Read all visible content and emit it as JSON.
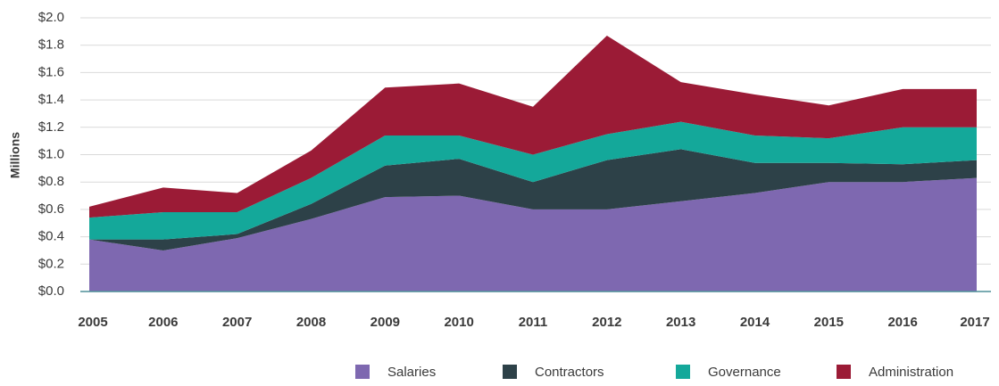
{
  "chart_data": {
    "type": "stacked_area",
    "y_label": "Millions",
    "categories": [
      "2005",
      "2006",
      "2007",
      "2008",
      "2009",
      "2010",
      "2011",
      "2012",
      "2013",
      "2014",
      "2015",
      "2016",
      "2017"
    ],
    "series": [
      {
        "name": "Salaries",
        "color": "#7e68b0",
        "values": [
          0.38,
          0.3,
          0.39,
          0.53,
          0.69,
          0.7,
          0.6,
          0.6,
          0.66,
          0.72,
          0.8,
          0.8,
          0.83
        ]
      },
      {
        "name": "Contractors",
        "color": "#2d4148",
        "values": [
          0,
          0.08,
          0.03,
          0.11,
          0.23,
          0.27,
          0.2,
          0.36,
          0.38,
          0.22,
          0.14,
          0.13,
          0.13
        ]
      },
      {
        "name": "Governance",
        "color": "#14a89a",
        "values": [
          0.16,
          0.2,
          0.16,
          0.19,
          0.22,
          0.17,
          0.2,
          0.19,
          0.2,
          0.2,
          0.18,
          0.27,
          0.24
        ]
      },
      {
        "name": "Administration",
        "color": "#9b1b36",
        "values": [
          0.08,
          0.18,
          0.14,
          0.2,
          0.35,
          0.38,
          0.35,
          0.72,
          0.29,
          0.3,
          0.24,
          0.28,
          0.28
        ]
      }
    ],
    "ylim": [
      0,
      2.0
    ],
    "yticks": [
      {
        "value": 0,
        "label": "$0.0"
      },
      {
        "value": 0.2,
        "label": "$0.2"
      },
      {
        "value": 0.4,
        "label": "$0.4"
      },
      {
        "value": 0.6,
        "label": "$0.6"
      },
      {
        "value": 0.8,
        "label": "$0.8"
      },
      {
        "value": 1.0,
        "label": "$1.0"
      },
      {
        "value": 1.2,
        "label": "$1.2"
      },
      {
        "value": 1.4,
        "label": "$1.4"
      },
      {
        "value": 1.6,
        "label": "$1.6"
      },
      {
        "value": 1.8,
        "label": "$1.8"
      },
      {
        "value": 2.0,
        "label": "$2.0"
      }
    ],
    "grid": true,
    "legend": "bottom"
  }
}
